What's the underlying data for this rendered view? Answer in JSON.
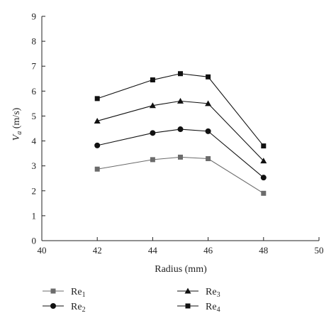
{
  "chart_data": {
    "type": "line",
    "xlabel": "Radius (mm)",
    "ylabel_main": "V",
    "ylabel_sub": "a",
    "ylabel_unit": " (m/s)",
    "xlim": [
      40,
      50
    ],
    "ylim": [
      0,
      9
    ],
    "xticks": [
      40,
      42,
      44,
      46,
      48,
      50
    ],
    "yticks": [
      0,
      1,
      2,
      3,
      4,
      5,
      6,
      7,
      8,
      9
    ],
    "grid": false,
    "legend_position": "bottom",
    "x": [
      42,
      44,
      45,
      46,
      48
    ],
    "series": [
      {
        "name_main": "Re",
        "name_sub": "1",
        "marker": "square",
        "color": "#6b6b6b",
        "values": [
          2.87,
          3.25,
          3.35,
          3.29,
          1.9
        ]
      },
      {
        "name_main": "Re",
        "name_sub": "2",
        "marker": "circle",
        "color": "#111111",
        "values": [
          3.82,
          4.32,
          4.47,
          4.39,
          2.53
        ]
      },
      {
        "name_main": "Re",
        "name_sub": "3",
        "marker": "triangle",
        "color": "#111111",
        "values": [
          4.8,
          5.42,
          5.6,
          5.5,
          3.2
        ]
      },
      {
        "name_main": "Re",
        "name_sub": "4",
        "marker": "square",
        "color": "#111111",
        "values": [
          5.7,
          6.45,
          6.7,
          6.57,
          3.8
        ]
      }
    ]
  }
}
